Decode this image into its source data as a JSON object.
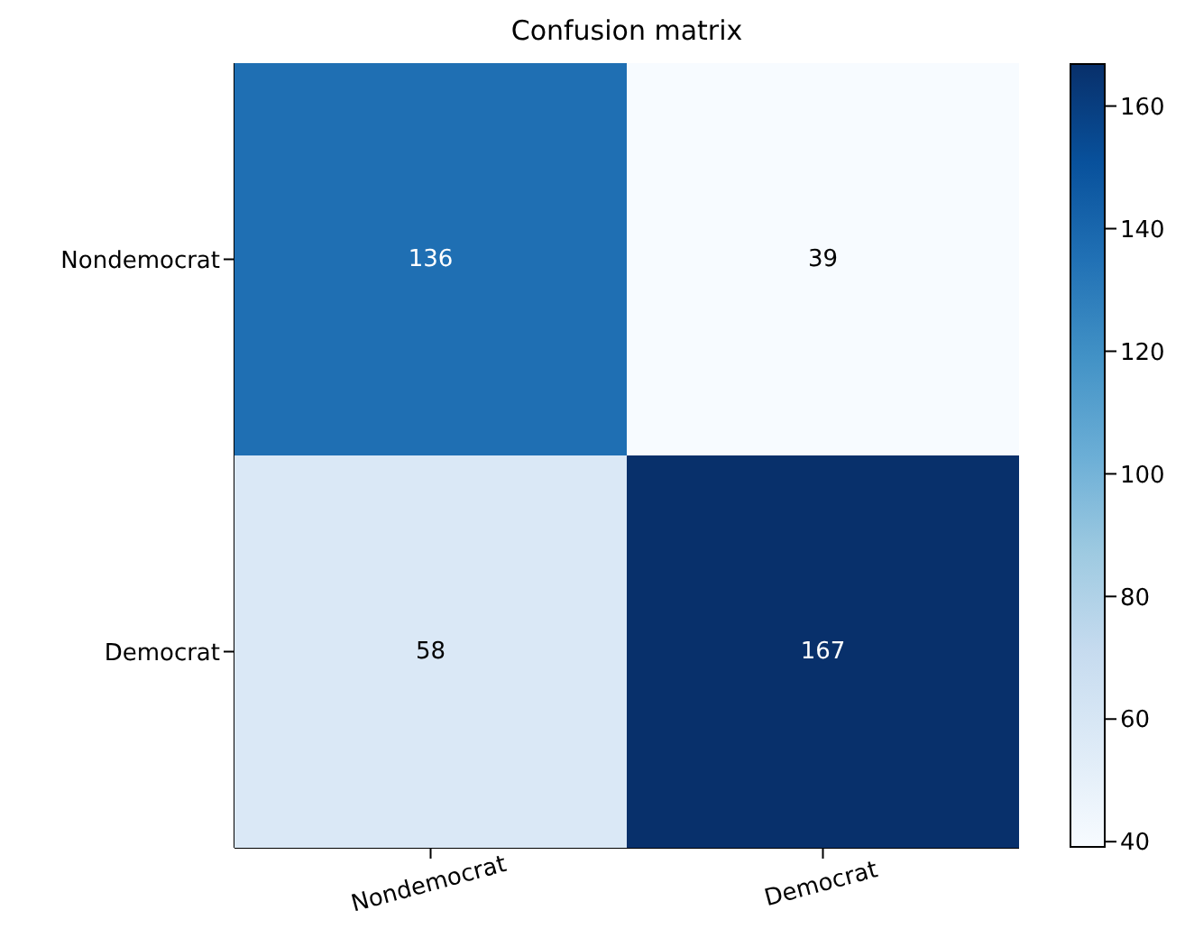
{
  "chart_data": {
    "type": "heatmap",
    "title": "Confusion matrix",
    "categories": [
      "Nondemocrat",
      "Democrat"
    ],
    "y_categories": [
      "Nondemocrat",
      "Democrat"
    ],
    "cells": [
      [
        136,
        39
      ],
      [
        58,
        167
      ]
    ],
    "data_labels": true,
    "clim": [
      39,
      167
    ],
    "cticks": [
      40,
      60,
      80,
      100,
      120,
      140,
      160
    ]
  }
}
